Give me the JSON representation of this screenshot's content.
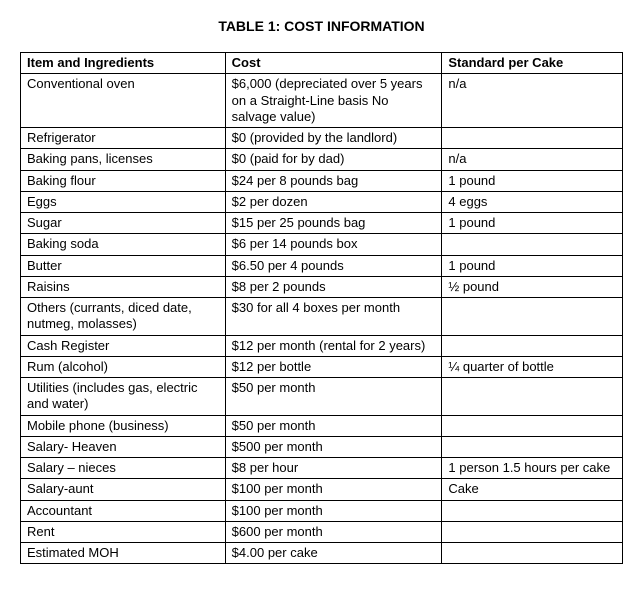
{
  "title": "TABLE 1: COST INFORMATION",
  "columns": [
    "Item and Ingredients",
    "Cost",
    "Standard per Cake"
  ],
  "rows": [
    {
      "item": "Conventional oven",
      "cost": "$6,000 (depreciated over 5 years on a Straight-Line basis No salvage value)",
      "std": "n/a"
    },
    {
      "item": "Refrigerator",
      "cost": "$0 (provided by the landlord)",
      "std": ""
    },
    {
      "item": "Baking pans, licenses",
      "cost": "$0 (paid for by dad)",
      "std": "n/a"
    },
    {
      "item": "Baking flour",
      "cost": "$24 per 8 pounds bag",
      "std": "1 pound"
    },
    {
      "item": "Eggs",
      "cost": "$2 per dozen",
      "std": "4 eggs"
    },
    {
      "item": "Sugar",
      "cost": "$15 per 25 pounds bag",
      "std": "1 pound"
    },
    {
      "item": "Baking soda",
      "cost": "$6 per 14 pounds box",
      "std": ""
    },
    {
      "item": "Butter",
      "cost": "$6.50 per 4 pounds",
      "std": "1 pound"
    },
    {
      "item": "Raisins",
      "cost": "$8 per 2 pounds",
      "std": "½ pound"
    },
    {
      "item": "Others (currants, diced date, nutmeg, molasses)",
      "cost": "$30 for all 4 boxes per month",
      "std": ""
    },
    {
      "item": "Cash Register",
      "cost": "$12 per month (rental for 2 years)",
      "std": ""
    },
    {
      "item": "Rum (alcohol)",
      "cost": "$12 per bottle",
      "std": "¼ quarter of bottle"
    },
    {
      "item": "Utilities (includes gas, electric and water)",
      "cost": "$50 per month",
      "std": ""
    },
    {
      "item": "Mobile phone (business)",
      "cost": "$50 per month",
      "std": ""
    },
    {
      "item": "Salary- Heaven",
      "cost": "$500 per month",
      "std": ""
    },
    {
      "item": "Salary – nieces",
      "cost": "$8 per hour",
      "std": "1 person 1.5 hours per cake"
    },
    {
      "item": "Salary-aunt",
      "cost": "$100 per month",
      "std": "Cake"
    },
    {
      "item": "Accountant",
      "cost": "$100 per month",
      "std": ""
    },
    {
      "item": "Rent",
      "cost": "$600 per month",
      "std": ""
    },
    {
      "item": "Estimated MOH",
      "cost": "$4.00 per cake",
      "std": ""
    }
  ]
}
